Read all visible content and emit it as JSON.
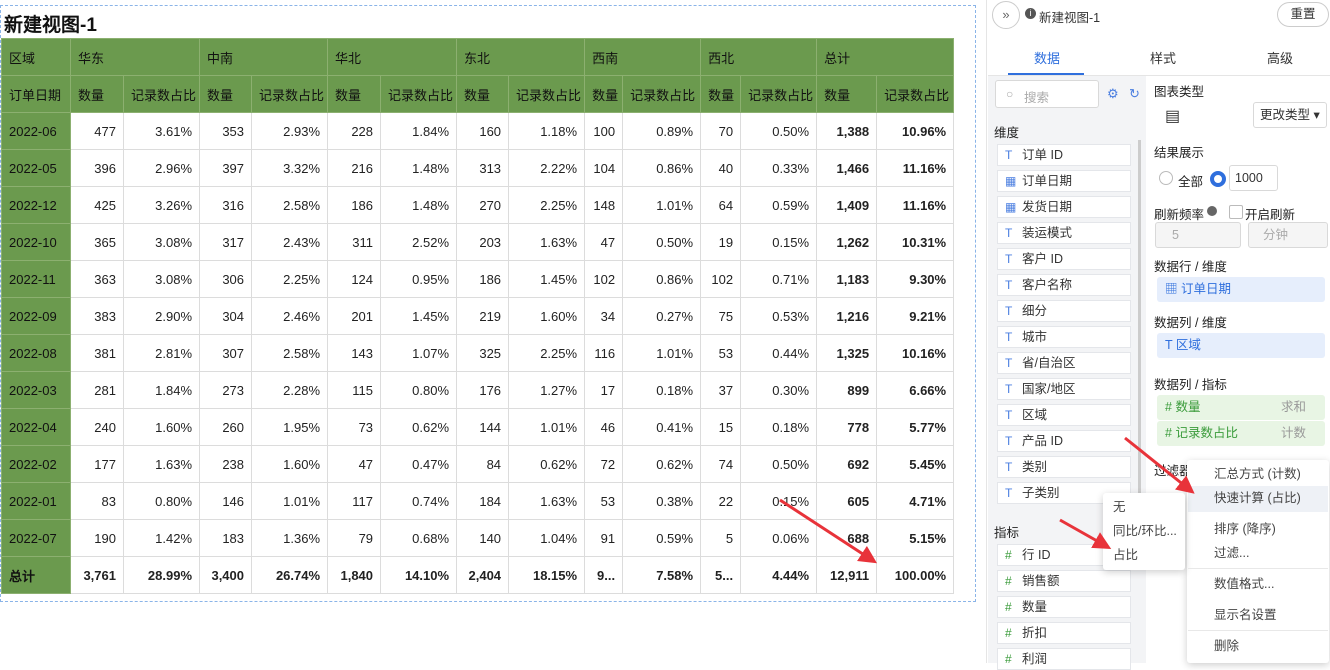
{
  "title": "新建视图-1",
  "table": {
    "header": [
      "区域",
      "华东",
      "中南",
      "华北",
      "东北",
      "西南",
      "西北",
      "总计"
    ],
    "subheader": [
      "订单日期",
      "数量",
      "记录数占比",
      "数量",
      "记录数占比",
      "数量",
      "记录数占比",
      "数量",
      "记录数占比",
      "数量",
      "记录数占比",
      "数量",
      "记录数占比",
      "数量",
      "记录数占比"
    ],
    "rows": [
      [
        "2022-06",
        "477",
        "3.61%",
        "353",
        "2.93%",
        "228",
        "1.84%",
        "160",
        "1.18%",
        "100",
        "0.89%",
        "70",
        "0.50%",
        "1,388",
        "10.96%"
      ],
      [
        "2022-05",
        "396",
        "2.96%",
        "397",
        "3.32%",
        "216",
        "1.48%",
        "313",
        "2.22%",
        "104",
        "0.86%",
        "40",
        "0.33%",
        "1,466",
        "11.16%"
      ],
      [
        "2022-12",
        "425",
        "3.26%",
        "316",
        "2.58%",
        "186",
        "1.48%",
        "270",
        "2.25%",
        "148",
        "1.01%",
        "64",
        "0.59%",
        "1,409",
        "11.16%"
      ],
      [
        "2022-10",
        "365",
        "3.08%",
        "317",
        "2.43%",
        "311",
        "2.52%",
        "203",
        "1.63%",
        "47",
        "0.50%",
        "19",
        "0.15%",
        "1,262",
        "10.31%"
      ],
      [
        "2022-11",
        "363",
        "3.08%",
        "306",
        "2.25%",
        "124",
        "0.95%",
        "186",
        "1.45%",
        "102",
        "0.86%",
        "102",
        "0.71%",
        "1,183",
        "9.30%"
      ],
      [
        "2022-09",
        "383",
        "2.90%",
        "304",
        "2.46%",
        "201",
        "1.45%",
        "219",
        "1.60%",
        "34",
        "0.27%",
        "75",
        "0.53%",
        "1,216",
        "9.21%"
      ],
      [
        "2022-08",
        "381",
        "2.81%",
        "307",
        "2.58%",
        "143",
        "1.07%",
        "325",
        "2.25%",
        "116",
        "1.01%",
        "53",
        "0.44%",
        "1,325",
        "10.16%"
      ],
      [
        "2022-03",
        "281",
        "1.84%",
        "273",
        "2.28%",
        "115",
        "0.80%",
        "176",
        "1.27%",
        "17",
        "0.18%",
        "37",
        "0.30%",
        "899",
        "6.66%"
      ],
      [
        "2022-04",
        "240",
        "1.60%",
        "260",
        "1.95%",
        "73",
        "0.62%",
        "144",
        "1.01%",
        "46",
        "0.41%",
        "15",
        "0.18%",
        "778",
        "5.77%"
      ],
      [
        "2022-02",
        "177",
        "1.63%",
        "238",
        "1.60%",
        "47",
        "0.47%",
        "84",
        "0.62%",
        "72",
        "0.62%",
        "74",
        "0.50%",
        "692",
        "5.45%"
      ],
      [
        "2022-01",
        "83",
        "0.80%",
        "146",
        "1.01%",
        "117",
        "0.74%",
        "184",
        "1.63%",
        "53",
        "0.38%",
        "22",
        "0.15%",
        "605",
        "4.71%"
      ],
      [
        "2022-07",
        "190",
        "1.42%",
        "183",
        "1.36%",
        "79",
        "0.68%",
        "140",
        "1.04%",
        "91",
        "0.59%",
        "5",
        "0.06%",
        "688",
        "5.15%"
      ],
      [
        "总计",
        "3,761",
        "28.99%",
        "3,400",
        "26.74%",
        "1,840",
        "14.10%",
        "2,404",
        "18.15%",
        "9...",
        "7.58%",
        "5...",
        "4.44%",
        "12,911",
        "100.00%"
      ]
    ]
  },
  "panel": {
    "view_name": "新建视图-1",
    "reset": "重置",
    "tabs": [
      "数据",
      "样式",
      "高级"
    ],
    "search": "搜索",
    "dimensions_label": "维度",
    "dimensions": [
      "订单 ID",
      "订单日期",
      "发货日期",
      "装运模式",
      "客户 ID",
      "客户名称",
      "细分",
      "城市",
      "省/自治区",
      "国家/地区",
      "区域",
      "产品 ID",
      "类别",
      "子类别"
    ],
    "measures_label": "指标",
    "measures": [
      "行 ID",
      "销售额",
      "数量",
      "折扣",
      "利润"
    ],
    "chart_type_label": "图表类型",
    "change_type": "更改类型",
    "result_label": "结果展示",
    "result_all": "全部",
    "result_limit": "1000",
    "refresh_label": "刷新频率",
    "refresh_enable": "开启刷新",
    "refresh_value": "5",
    "refresh_unit": "分钟",
    "row_dim_label": "数据行 / 维度",
    "row_dim": "订单日期",
    "col_dim_label": "数据列 / 维度",
    "col_dim": "区域",
    "col_measure_label": "数据列 / 指标",
    "measures_used": [
      {
        "name": "数量",
        "agg": "求和"
      },
      {
        "name": "记录数占比",
        "agg": "计数"
      }
    ],
    "filter_label": "过滤器"
  },
  "menu": {
    "items": [
      "汇总方式 (计数)",
      "快速计算 (占比)",
      "排序 (降序)",
      "过滤...",
      "数值格式...",
      "显示名设置",
      "删除"
    ]
  },
  "submenu": {
    "items": [
      "无",
      "同比/环比...",
      "占比"
    ]
  }
}
